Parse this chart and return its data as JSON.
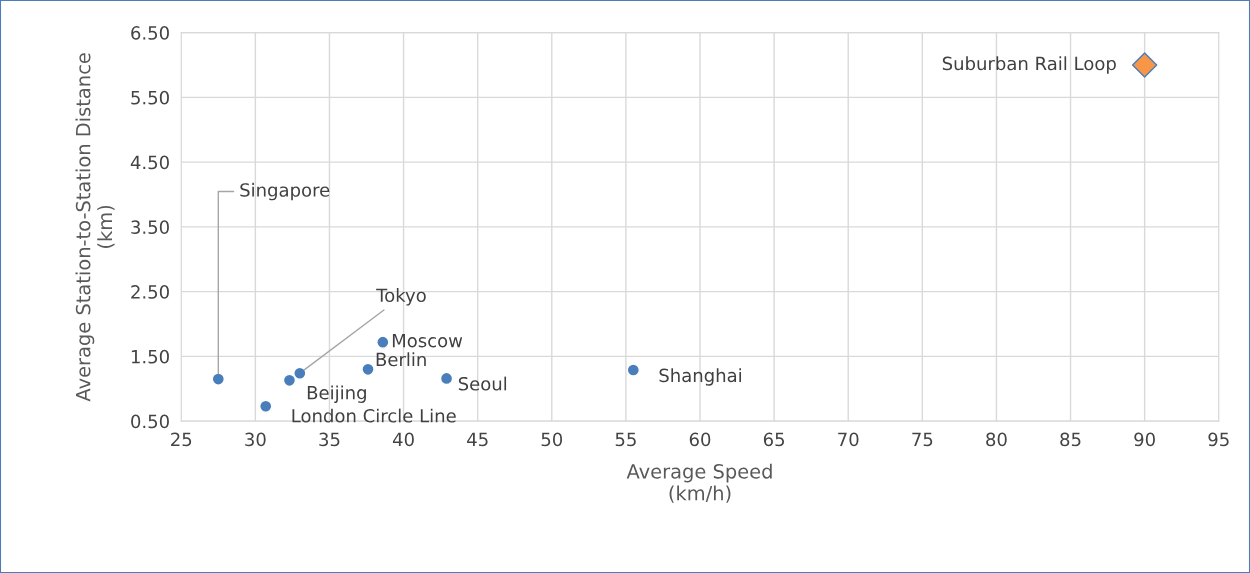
{
  "chart_data": {
    "type": "scatter",
    "xlabel": "Average Speed\n(km/h)",
    "ylabel": "Average Station-to-Station Distance\n(km)",
    "series": [
      {
        "color": "#4a7ebb",
        "marker": "circle",
        "x": [
          27.5,
          30.7,
          32.3,
          33.0,
          37.6,
          38.6,
          42.9,
          55.5
        ],
        "values": [
          1.15,
          0.73,
          1.13,
          1.24,
          1.3,
          1.72,
          1.16,
          1.29
        ]
      },
      {
        "color": "#f79646",
        "marker": "diamond",
        "x": [
          90
        ],
        "values": [
          6.0
        ]
      }
    ],
    "annotations": [
      {
        "text": "Singapore",
        "x": 27.5,
        "y": 1.15
      },
      {
        "text": "London Circle Line",
        "x": 30.7,
        "y": 0.73
      },
      {
        "text": "Beijing",
        "x": 32.3,
        "y": 1.13
      },
      {
        "text": "Tokyo",
        "x": 33.0,
        "y": 1.24
      },
      {
        "text": "Berlin",
        "x": 37.6,
        "y": 1.3
      },
      {
        "text": "Moscow",
        "x": 38.6,
        "y": 1.72
      },
      {
        "text": "Seoul",
        "x": 42.9,
        "y": 1.16
      },
      {
        "text": "Shanghai",
        "x": 55.5,
        "y": 1.29
      },
      {
        "text": "Suburban Rail Loop",
        "x": 90,
        "y": 6.0
      }
    ],
    "xlim": [
      25,
      95
    ],
    "xticks": [
      25,
      30,
      35,
      40,
      45,
      50,
      55,
      60,
      65,
      70,
      75,
      80,
      85,
      90,
      95
    ],
    "ylim": [
      0.5,
      6.5
    ],
    "yticks": [
      {
        "value": 0.5,
        "label": "0.50"
      },
      {
        "value": 1.5,
        "label": "1.50"
      },
      {
        "value": 2.5,
        "label": "2.50"
      },
      {
        "value": 3.5,
        "label": "3.50"
      },
      {
        "value": 4.5,
        "label": "4.50"
      },
      {
        "value": 5.5,
        "label": "5.50"
      },
      {
        "value": 6.5,
        "label": "6.50"
      }
    ],
    "grid": true
  }
}
